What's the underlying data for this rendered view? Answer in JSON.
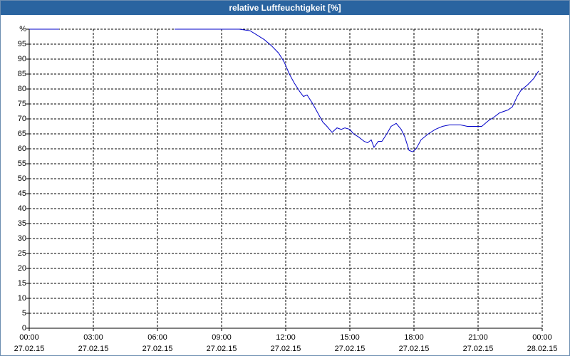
{
  "chart_data": {
    "type": "line",
    "title": "relative Luftfeuchtigkeit [%]",
    "x": [
      0,
      1.4,
      4,
      6.8,
      9.83,
      10.33,
      10.67,
      11,
      11.33,
      11.67,
      11.93,
      12.17,
      12.4,
      12.67,
      12.83,
      13,
      13.27,
      13.5,
      13.73,
      13.93,
      14.17,
      14.4,
      14.6,
      14.77,
      15,
      15.17,
      15.4,
      15.67,
      15.83,
      16,
      16.13,
      16.33,
      16.5,
      16.73,
      16.93,
      17.17,
      17.4,
      17.57,
      17.77,
      17.93,
      18.1,
      18.33,
      18.67,
      19,
      19.33,
      19.67,
      20.17,
      20.5,
      20.83,
      21.17,
      21.5,
      21.73,
      22,
      22.4,
      22.6,
      22.83,
      23,
      23.33,
      23.6,
      23.83
    ],
    "values": [
      100,
      100,
      null,
      100,
      100,
      99.5,
      98,
      96.5,
      94.5,
      92,
      89,
      85,
      82,
      79,
      77.5,
      78,
      75,
      72,
      69,
      67.5,
      65.5,
      67,
      66.5,
      67,
      66.5,
      65,
      64,
      62.5,
      62,
      63,
      60.5,
      62.5,
      62.5,
      65,
      67.5,
      68.5,
      66.5,
      64,
      59.5,
      59,
      60,
      63,
      65,
      66.5,
      67.5,
      68,
      68,
      67.5,
      67.5,
      67.5,
      69.5,
      70.5,
      72,
      73,
      74,
      77.5,
      79.5,
      81.5,
      83.5,
      86
    ],
    "color": "#0000c8",
    "xlim": [
      0,
      24
    ],
    "xticks": [
      {
        "value": 0,
        "label": "00:00\n27.02.15"
      },
      {
        "value": 3,
        "label": "03:00\n27.02.15"
      },
      {
        "value": 6,
        "label": "06:00\n27.02.15"
      },
      {
        "value": 9,
        "label": "09:00\n27.02.15"
      },
      {
        "value": 12,
        "label": "12:00\n27.02.15"
      },
      {
        "value": 15,
        "label": "15:00\n27.02.15"
      },
      {
        "value": 18,
        "label": "18:00\n27.02.15"
      },
      {
        "value": 21,
        "label": "21:00\n27.02.15"
      },
      {
        "value": 24,
        "label": "00:00\n28.02.15"
      }
    ],
    "ylim": [
      0,
      100
    ],
    "yticks": [
      0,
      5,
      10,
      15,
      20,
      25,
      30,
      35,
      40,
      45,
      50,
      55,
      60,
      65,
      70,
      75,
      80,
      85,
      90,
      95,
      {
        "value": 100,
        "label": "%"
      }
    ],
    "grid": true
  }
}
